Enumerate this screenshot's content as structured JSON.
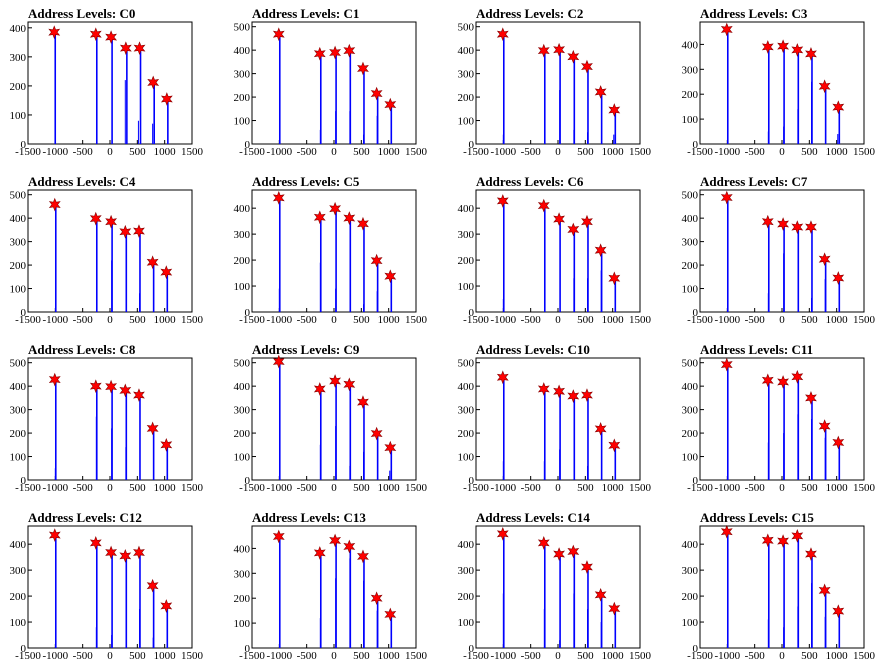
{
  "chart_data": [
    {
      "type": "bar",
      "title": "Address Levels: C0",
      "xlim": [
        -1500,
        1500
      ],
      "ylim": [
        0,
        420
      ],
      "xticks": [
        -1500,
        -1000,
        -500,
        0,
        500,
        1000,
        1500
      ],
      "yticks": [
        0,
        100,
        200,
        300,
        400
      ],
      "peaks": [
        {
          "x": -1020,
          "y": 385
        },
        {
          "x": -260,
          "y": 378
        },
        {
          "x": 20,
          "y": 368
        },
        {
          "x": 290,
          "y": 330
        },
        {
          "x": 540,
          "y": 330
        },
        {
          "x": 790,
          "y": 212
        },
        {
          "x": 1040,
          "y": 155
        }
      ],
      "minor": [
        {
          "x": -1000,
          "y": 110
        },
        {
          "x": -240,
          "y": 50
        },
        {
          "x": 280,
          "y": 220
        },
        {
          "x": 520,
          "y": 80
        },
        {
          "x": 780,
          "y": 70
        }
      ]
    },
    {
      "type": "bar",
      "title": "Address Levels: C1",
      "xlim": [
        -1500,
        1500
      ],
      "ylim": [
        0,
        520
      ],
      "xticks": [
        -1500,
        -1000,
        -500,
        0,
        500,
        1000,
        1500
      ],
      "yticks": [
        0,
        100,
        200,
        300,
        400,
        500
      ],
      "peaks": [
        {
          "x": -1010,
          "y": 468
        },
        {
          "x": -260,
          "y": 385
        },
        {
          "x": 20,
          "y": 390
        },
        {
          "x": 280,
          "y": 398
        },
        {
          "x": 530,
          "y": 322
        },
        {
          "x": 780,
          "y": 215
        },
        {
          "x": 1030,
          "y": 168
        }
      ],
      "minor": [
        {
          "x": -250,
          "y": 60
        },
        {
          "x": 30,
          "y": 140
        },
        {
          "x": 290,
          "y": 140
        },
        {
          "x": 540,
          "y": 40
        },
        {
          "x": 790,
          "y": 120
        }
      ]
    },
    {
      "type": "bar",
      "title": "Address Levels: C2",
      "xlim": [
        -1500,
        1500
      ],
      "ylim": [
        0,
        520
      ],
      "xticks": [
        -1500,
        -1000,
        -500,
        0,
        500,
        1000,
        1500
      ],
      "yticks": [
        0,
        100,
        200,
        300,
        400,
        500
      ],
      "peaks": [
        {
          "x": -1010,
          "y": 468
        },
        {
          "x": -260,
          "y": 398
        },
        {
          "x": 20,
          "y": 402
        },
        {
          "x": 280,
          "y": 372
        },
        {
          "x": 530,
          "y": 330
        },
        {
          "x": 780,
          "y": 222
        },
        {
          "x": 1030,
          "y": 145
        }
      ],
      "minor": [
        {
          "x": -1000,
          "y": 40
        },
        {
          "x": 30,
          "y": 230
        },
        {
          "x": 290,
          "y": 60
        },
        {
          "x": 540,
          "y": 50
        },
        {
          "x": 1020,
          "y": 40
        }
      ]
    },
    {
      "type": "bar",
      "title": "Address Levels: C3",
      "xlim": [
        -1500,
        1500
      ],
      "ylim": [
        0,
        490
      ],
      "xticks": [
        -1500,
        -1000,
        -500,
        0,
        500,
        1000,
        1500
      ],
      "yticks": [
        0,
        100,
        200,
        300,
        400
      ],
      "peaks": [
        {
          "x": -1010,
          "y": 460
        },
        {
          "x": -260,
          "y": 390
        },
        {
          "x": 20,
          "y": 393
        },
        {
          "x": 280,
          "y": 378
        },
        {
          "x": 530,
          "y": 362
        },
        {
          "x": 780,
          "y": 232
        },
        {
          "x": 1030,
          "y": 148
        }
      ],
      "minor": [
        {
          "x": -250,
          "y": 50
        },
        {
          "x": 30,
          "y": 70
        },
        {
          "x": 290,
          "y": 140
        },
        {
          "x": 540,
          "y": 250
        },
        {
          "x": 1020,
          "y": 40
        }
      ]
    },
    {
      "type": "bar",
      "title": "Address Levels: C4",
      "xlim": [
        -1500,
        1500
      ],
      "ylim": [
        0,
        520
      ],
      "xticks": [
        -1500,
        -1000,
        -500,
        0,
        500,
        1000,
        1500
      ],
      "yticks": [
        0,
        100,
        200,
        300,
        400,
        500
      ],
      "peaks": [
        {
          "x": -1010,
          "y": 458
        },
        {
          "x": -260,
          "y": 398
        },
        {
          "x": 20,
          "y": 385
        },
        {
          "x": 280,
          "y": 342
        },
        {
          "x": 530,
          "y": 345
        },
        {
          "x": 780,
          "y": 212
        },
        {
          "x": 1030,
          "y": 170
        }
      ],
      "minor": [
        {
          "x": 30,
          "y": 220
        },
        {
          "x": 540,
          "y": 80
        },
        {
          "x": 540,
          "y": 40
        }
      ]
    },
    {
      "type": "bar",
      "title": "Address Levels: C5",
      "xlim": [
        -1500,
        1500
      ],
      "ylim": [
        0,
        470
      ],
      "xticks": [
        -1500,
        -1000,
        -500,
        0,
        500,
        1000,
        1500
      ],
      "yticks": [
        0,
        100,
        200,
        300,
        400
      ],
      "peaks": [
        {
          "x": -1010,
          "y": 440
        },
        {
          "x": -260,
          "y": 365
        },
        {
          "x": 20,
          "y": 398
        },
        {
          "x": 280,
          "y": 362
        },
        {
          "x": 530,
          "y": 340
        },
        {
          "x": 780,
          "y": 198
        },
        {
          "x": 1030,
          "y": 138
        }
      ],
      "minor": [
        {
          "x": -1000,
          "y": 90
        },
        {
          "x": -250,
          "y": 190
        },
        {
          "x": 30,
          "y": 90
        },
        {
          "x": 540,
          "y": 30
        },
        {
          "x": 790,
          "y": 80
        }
      ]
    },
    {
      "type": "bar",
      "title": "Address Levels: C6",
      "xlim": [
        -1500,
        1500
      ],
      "ylim": [
        0,
        470
      ],
      "xticks": [
        -1500,
        -1000,
        -500,
        0,
        500,
        1000,
        1500
      ],
      "yticks": [
        0,
        100,
        200,
        300,
        400
      ],
      "peaks": [
        {
          "x": -1010,
          "y": 428
        },
        {
          "x": -260,
          "y": 410
        },
        {
          "x": 20,
          "y": 358
        },
        {
          "x": 280,
          "y": 318
        },
        {
          "x": 530,
          "y": 348
        },
        {
          "x": 780,
          "y": 238
        },
        {
          "x": 1030,
          "y": 130
        }
      ],
      "minor": [
        {
          "x": -1000,
          "y": 50
        },
        {
          "x": 290,
          "y": 130
        },
        {
          "x": 540,
          "y": 130
        },
        {
          "x": 790,
          "y": 160
        }
      ]
    },
    {
      "type": "bar",
      "title": "Address Levels: C7",
      "xlim": [
        -1500,
        1500
      ],
      "ylim": [
        0,
        520
      ],
      "xticks": [
        -1500,
        -1000,
        -500,
        0,
        500,
        1000,
        1500
      ],
      "yticks": [
        0,
        100,
        200,
        300,
        400,
        500
      ],
      "peaks": [
        {
          "x": -1010,
          "y": 488
        },
        {
          "x": -260,
          "y": 385
        },
        {
          "x": 20,
          "y": 375
        },
        {
          "x": 280,
          "y": 362
        },
        {
          "x": 530,
          "y": 362
        },
        {
          "x": 780,
          "y": 225
        },
        {
          "x": 1030,
          "y": 145
        }
      ],
      "minor": [
        {
          "x": -250,
          "y": 80
        },
        {
          "x": 30,
          "y": 250
        },
        {
          "x": 540,
          "y": 60
        },
        {
          "x": 790,
          "y": 140
        }
      ]
    },
    {
      "type": "bar",
      "title": "Address Levels: C8",
      "xlim": [
        -1500,
        1500
      ],
      "ylim": [
        0,
        520
      ],
      "xticks": [
        -1500,
        -1000,
        -500,
        0,
        500,
        1000,
        1500
      ],
      "yticks": [
        0,
        100,
        200,
        300,
        400,
        500
      ],
      "peaks": [
        {
          "x": -1010,
          "y": 428
        },
        {
          "x": -260,
          "y": 400
        },
        {
          "x": 20,
          "y": 398
        },
        {
          "x": 280,
          "y": 382
        },
        {
          "x": 530,
          "y": 362
        },
        {
          "x": 780,
          "y": 220
        },
        {
          "x": 1030,
          "y": 150
        }
      ],
      "minor": [
        {
          "x": -1000,
          "y": 50
        },
        {
          "x": -250,
          "y": 270
        },
        {
          "x": 30,
          "y": 220
        },
        {
          "x": 290,
          "y": 140
        }
      ]
    },
    {
      "type": "bar",
      "title": "Address Levels: C9",
      "xlim": [
        -1500,
        1500
      ],
      "ylim": [
        0,
        520
      ],
      "xticks": [
        -1500,
        -1000,
        -500,
        0,
        500,
        1000,
        1500
      ],
      "yticks": [
        0,
        100,
        200,
        300,
        400,
        500
      ],
      "peaks": [
        {
          "x": -1010,
          "y": 505
        },
        {
          "x": -260,
          "y": 388
        },
        {
          "x": 20,
          "y": 422
        },
        {
          "x": 280,
          "y": 408
        },
        {
          "x": 530,
          "y": 332
        },
        {
          "x": 780,
          "y": 198
        },
        {
          "x": 1030,
          "y": 138
        }
      ],
      "minor": [
        {
          "x": -250,
          "y": 150
        },
        {
          "x": 30,
          "y": 230
        },
        {
          "x": 290,
          "y": 60
        },
        {
          "x": 540,
          "y": 120
        },
        {
          "x": 1020,
          "y": 40
        }
      ]
    },
    {
      "type": "bar",
      "title": "Address Levels: C10",
      "xlim": [
        -1500,
        1500
      ],
      "ylim": [
        0,
        520
      ],
      "xticks": [
        -1500,
        -1000,
        -500,
        0,
        500,
        1000,
        1500
      ],
      "yticks": [
        0,
        100,
        200,
        300,
        400,
        500
      ],
      "peaks": [
        {
          "x": -1010,
          "y": 438
        },
        {
          "x": -260,
          "y": 388
        },
        {
          "x": 20,
          "y": 378
        },
        {
          "x": 280,
          "y": 358
        },
        {
          "x": 530,
          "y": 362
        },
        {
          "x": 780,
          "y": 218
        },
        {
          "x": 1030,
          "y": 148
        }
      ],
      "minor": [
        {
          "x": -1000,
          "y": 80
        },
        {
          "x": -250,
          "y": 80
        },
        {
          "x": 30,
          "y": 130
        },
        {
          "x": 540,
          "y": 60
        }
      ]
    },
    {
      "type": "bar",
      "title": "Address Levels: C11",
      "xlim": [
        -1500,
        1500
      ],
      "ylim": [
        0,
        520
      ],
      "xticks": [
        -1500,
        -1000,
        -500,
        0,
        500,
        1000,
        1500
      ],
      "yticks": [
        0,
        100,
        200,
        300,
        400,
        500
      ],
      "peaks": [
        {
          "x": -1010,
          "y": 492
        },
        {
          "x": -260,
          "y": 425
        },
        {
          "x": 20,
          "y": 418
        },
        {
          "x": 280,
          "y": 440
        },
        {
          "x": 530,
          "y": 350
        },
        {
          "x": 780,
          "y": 230
        },
        {
          "x": 1030,
          "y": 160
        }
      ],
      "minor": [
        {
          "x": -250,
          "y": 160
        },
        {
          "x": 30,
          "y": 200
        },
        {
          "x": 290,
          "y": 280
        },
        {
          "x": 540,
          "y": 260
        },
        {
          "x": 790,
          "y": 180
        }
      ]
    },
    {
      "type": "bar",
      "title": "Address Levels: C12",
      "xlim": [
        -1500,
        1500
      ],
      "ylim": [
        0,
        470
      ],
      "xticks": [
        -1500,
        -1000,
        -500,
        0,
        500,
        1000,
        1500
      ],
      "yticks": [
        0,
        100,
        200,
        300,
        400
      ],
      "peaks": [
        {
          "x": -1010,
          "y": 435
        },
        {
          "x": -260,
          "y": 405
        },
        {
          "x": 20,
          "y": 368
        },
        {
          "x": 280,
          "y": 355
        },
        {
          "x": 530,
          "y": 368
        },
        {
          "x": 780,
          "y": 240
        },
        {
          "x": 1030,
          "y": 162
        }
      ],
      "minor": [
        {
          "x": -250,
          "y": 80
        },
        {
          "x": 30,
          "y": 50
        },
        {
          "x": 540,
          "y": 150
        },
        {
          "x": 790,
          "y": 40
        }
      ]
    },
    {
      "type": "bar",
      "title": "Address Levels: C13",
      "xlim": [
        -1500,
        1500
      ],
      "ylim": [
        0,
        490
      ],
      "xticks": [
        -1500,
        -1000,
        -500,
        0,
        500,
        1000,
        1500
      ],
      "yticks": [
        0,
        100,
        200,
        300,
        400
      ],
      "peaks": [
        {
          "x": -1010,
          "y": 448
        },
        {
          "x": -260,
          "y": 382
        },
        {
          "x": 20,
          "y": 432
        },
        {
          "x": 280,
          "y": 408
        },
        {
          "x": 530,
          "y": 368
        },
        {
          "x": 780,
          "y": 200
        },
        {
          "x": 1030,
          "y": 135
        }
      ],
      "minor": [
        {
          "x": -250,
          "y": 120
        },
        {
          "x": 30,
          "y": 280
        },
        {
          "x": 290,
          "y": 360
        },
        {
          "x": 540,
          "y": 270
        },
        {
          "x": 790,
          "y": 150
        }
      ]
    },
    {
      "type": "bar",
      "title": "Address Levels: C14",
      "xlim": [
        -1500,
        1500
      ],
      "ylim": [
        0,
        470
      ],
      "xticks": [
        -1500,
        -1000,
        -500,
        0,
        500,
        1000,
        1500
      ],
      "yticks": [
        0,
        100,
        200,
        300,
        400
      ],
      "peaks": [
        {
          "x": -1010,
          "y": 440
        },
        {
          "x": -260,
          "y": 405
        },
        {
          "x": 20,
          "y": 362
        },
        {
          "x": 280,
          "y": 372
        },
        {
          "x": 530,
          "y": 312
        },
        {
          "x": 780,
          "y": 205
        },
        {
          "x": 1030,
          "y": 152
        }
      ],
      "minor": [
        {
          "x": -1000,
          "y": 210
        },
        {
          "x": -250,
          "y": 150
        },
        {
          "x": 30,
          "y": 30
        },
        {
          "x": 290,
          "y": 210
        },
        {
          "x": 540,
          "y": 150
        },
        {
          "x": 790,
          "y": 100
        }
      ]
    },
    {
      "type": "bar",
      "title": "Address Levels: C15",
      "xlim": [
        -1500,
        1500
      ],
      "ylim": [
        0,
        470
      ],
      "xticks": [
        -1500,
        -1000,
        -500,
        0,
        500,
        1000,
        1500
      ],
      "yticks": [
        0,
        100,
        200,
        300,
        400
      ],
      "peaks": [
        {
          "x": -1010,
          "y": 448
        },
        {
          "x": -260,
          "y": 415
        },
        {
          "x": 20,
          "y": 412
        },
        {
          "x": 280,
          "y": 432
        },
        {
          "x": 530,
          "y": 362
        },
        {
          "x": 780,
          "y": 222
        },
        {
          "x": 1030,
          "y": 142
        }
      ],
      "minor": [
        {
          "x": -250,
          "y": 110
        },
        {
          "x": 30,
          "y": 80
        },
        {
          "x": 290,
          "y": 160
        },
        {
          "x": 540,
          "y": 250
        },
        {
          "x": 790,
          "y": 120
        }
      ]
    }
  ],
  "colors": {
    "bar": "#0000ff",
    "star": "#ff0000",
    "star_stroke": "#880000",
    "axis": "#000000"
  }
}
